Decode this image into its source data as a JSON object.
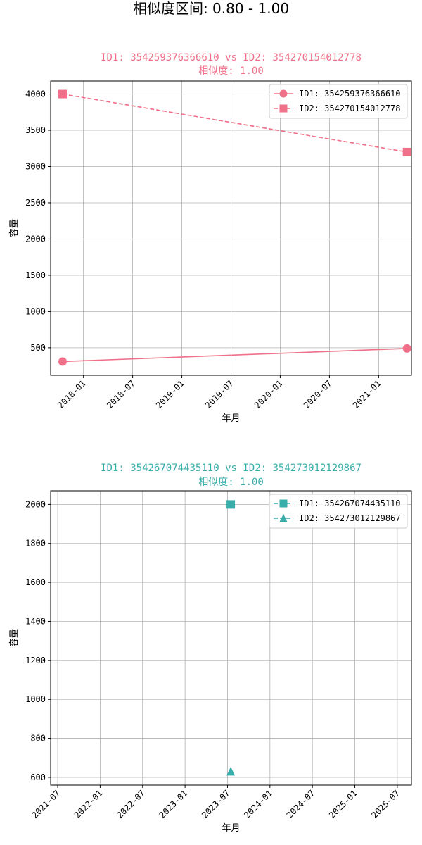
{
  "suptitle": "相似度区间: 0.80 - 1.00",
  "chart_data": [
    {
      "type": "line",
      "title": "ID1: 354259376366610 vs ID2: 354270154012778",
      "subtitle": "相似度: 1.00",
      "color": "#f0708a",
      "xlabel": "年月",
      "ylabel": "容量",
      "x_type": "date",
      "xlim": [
        "2017-09-01",
        "2021-05-01"
      ],
      "ylim": [
        120,
        4180
      ],
      "x_ticks": [
        "2018-01",
        "2018-07",
        "2019-01",
        "2019-07",
        "2020-01",
        "2020-07",
        "2021-01"
      ],
      "y_ticks": [
        500,
        1000,
        1500,
        2000,
        2500,
        3000,
        3500,
        4000
      ],
      "grid": true,
      "legend_position": "top-right",
      "series": [
        {
          "name": "ID1: 354259376366610",
          "marker": "circle",
          "linestyle": "solid",
          "x": [
            "2017-10",
            "2021-04"
          ],
          "y": [
            310,
            490
          ]
        },
        {
          "name": "ID2: 354270154012778",
          "marker": "square",
          "linestyle": "dashed",
          "x": [
            "2017-10",
            "2021-04"
          ],
          "y": [
            4000,
            3200
          ]
        }
      ]
    },
    {
      "type": "scatter",
      "title": "ID1: 354267074435110 vs ID2: 354273012129867",
      "subtitle": "相似度: 1.00",
      "color": "#38ada9",
      "xlabel": "年月",
      "ylabel": "容量",
      "x_type": "date",
      "xlim": [
        "2021-06-01",
        "2025-09-01"
      ],
      "ylim": [
        560,
        2070
      ],
      "x_ticks": [
        "2021-07",
        "2022-01",
        "2022-07",
        "2023-01",
        "2023-07",
        "2024-01",
        "2024-07",
        "2025-01",
        "2025-07"
      ],
      "y_ticks": [
        600,
        800,
        1000,
        1200,
        1400,
        1600,
        1800,
        2000
      ],
      "grid": true,
      "legend_position": "top-right",
      "series": [
        {
          "name": "ID1: 354267074435110",
          "marker": "square",
          "linestyle": "dashed",
          "x": [
            "2023-07"
          ],
          "y": [
            2000
          ]
        },
        {
          "name": "ID2: 354273012129867",
          "marker": "triangle",
          "linestyle": "dashed",
          "x": [
            "2023-07"
          ],
          "y": [
            630
          ]
        }
      ]
    }
  ]
}
